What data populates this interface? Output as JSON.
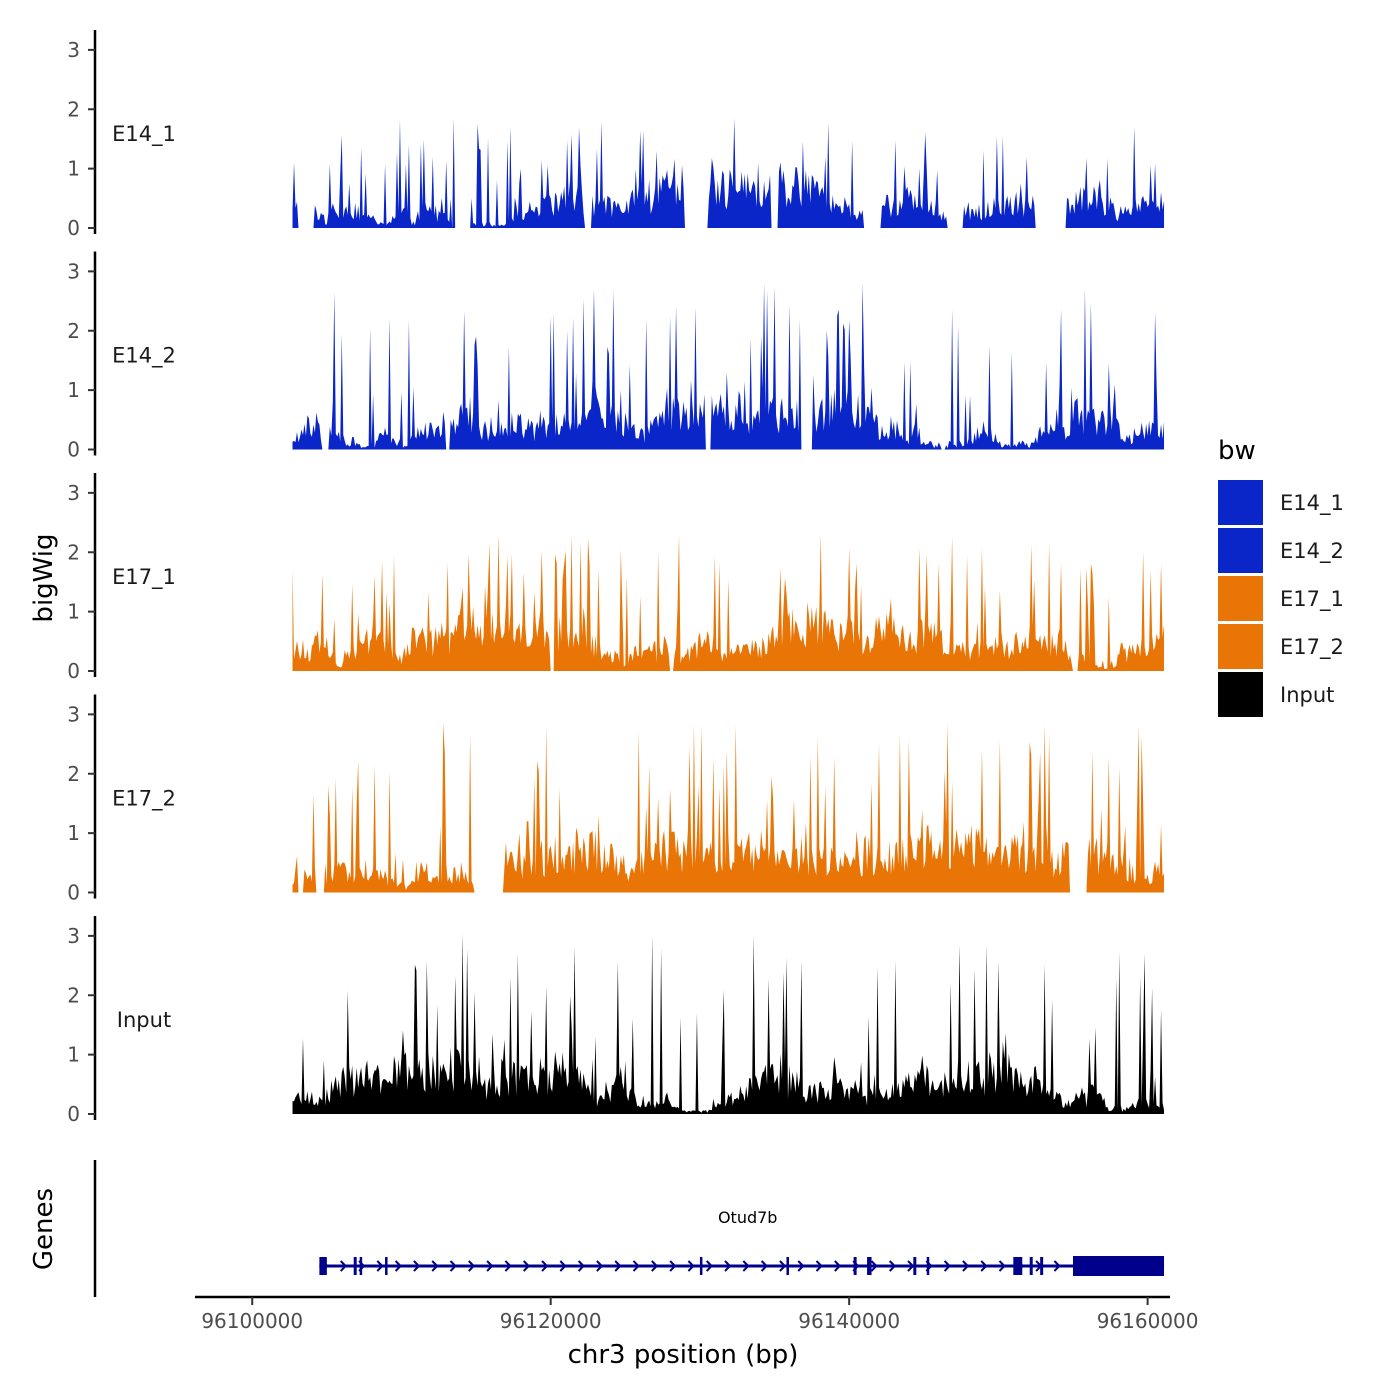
{
  "chart_data": {
    "type": "area",
    "title": "",
    "ylabel": "bigWig",
    "xlabel": "chr3 position (bp)",
    "xlim": [
      96096500,
      96161500
    ],
    "ylim": [
      0,
      3.2
    ],
    "x_ticks": [
      96100000,
      96120000,
      96140000,
      96160000
    ],
    "x_tick_labels": [
      "96100000",
      "96120000",
      "96140000",
      "96160000"
    ],
    "y_ticks": [
      0,
      1,
      2,
      3
    ],
    "y_tick_labels": [
      "0",
      "1",
      "2",
      "3"
    ],
    "data_range": [
      96102700,
      96161100
    ],
    "resolution_bp": 100,
    "tracks": [
      {
        "name": "E14_1",
        "color": "#0a25c8",
        "max": 1.85,
        "seed": 11,
        "zero_gaps": [
          [
            96103100,
            96104100
          ],
          [
            96113400,
            96114600
          ],
          [
            96122300,
            96122700
          ],
          [
            96129000,
            96130500
          ],
          [
            96134800,
            96135200
          ],
          [
            96141000,
            96142100
          ],
          [
            96146600,
            96147600
          ],
          [
            96152500,
            96154500
          ]
        ]
      },
      {
        "name": "E14_2",
        "color": "#0a25c8",
        "max": 2.8,
        "seed": 23,
        "zero_gaps": [
          [
            96104700,
            96105100
          ],
          [
            96113000,
            96113200
          ],
          [
            96130400,
            96130700
          ],
          [
            96136800,
            96137500
          ],
          [
            96146200,
            96146400
          ]
        ]
      },
      {
        "name": "E17_1",
        "color": "#e87506",
        "max": 2.3,
        "seed": 37,
        "zero_gaps": [
          [
            96120000,
            96120200
          ],
          [
            96128000,
            96128200
          ],
          [
            96155000,
            96155300
          ]
        ]
      },
      {
        "name": "E17_2",
        "color": "#e87506",
        "max": 2.85,
        "seed": 51,
        "zero_gaps": [
          [
            96103100,
            96103400
          ],
          [
            96104300,
            96104800
          ],
          [
            96114900,
            96116800
          ],
          [
            96154800,
            96155900
          ]
        ]
      },
      {
        "name": "Input",
        "color": "#000000",
        "max": 3.05,
        "seed": 71,
        "zero_gaps": []
      }
    ],
    "legend": {
      "title": "bw",
      "position": "right",
      "entries": [
        {
          "label": "E14_1",
          "color": "#0a25c8"
        },
        {
          "label": "E14_2",
          "color": "#0a25c8"
        },
        {
          "label": "E17_1",
          "color": "#e87506"
        },
        {
          "label": "E17_2",
          "color": "#e87506"
        },
        {
          "label": "Input",
          "color": "#000000"
        }
      ]
    },
    "genes": {
      "track_label": "Genes",
      "color": "#00008b",
      "items": [
        {
          "name": "Otud7b",
          "strand": "+",
          "start": 96104500,
          "end": 96161100,
          "exons": [
            [
              96104500,
              96105000
            ],
            [
              96106800,
              96107000
            ],
            [
              96107200,
              96107350
            ],
            [
              96108900,
              96109000
            ],
            [
              96130000,
              96130100
            ],
            [
              96135800,
              96135950
            ],
            [
              96140300,
              96140500
            ],
            [
              96141200,
              96141500
            ],
            [
              96144300,
              96144500
            ],
            [
              96145200,
              96145350
            ],
            [
              96151000,
              96151600
            ],
            [
              96152100,
              96152300
            ],
            [
              96152800,
              96153000
            ],
            [
              96155000,
              96161100
            ]
          ]
        }
      ]
    }
  }
}
